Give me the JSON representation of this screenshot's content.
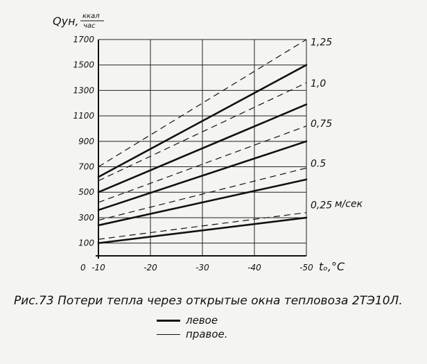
{
  "chart_data": {
    "type": "line",
    "y_label": "Qун,",
    "y_unit_num": "ккал",
    "y_unit_den": "час",
    "x_label": "tₒ,°C",
    "x_zero_label": "0",
    "x_ticks": [
      -10,
      -20,
      -30,
      -40,
      -50
    ],
    "y_ticks": [
      100,
      300,
      500,
      700,
      900,
      1100,
      1300,
      1500,
      1700
    ],
    "xlim": [
      -10,
      -50
    ],
    "ylim": [
      0,
      1700
    ],
    "grid": true,
    "velocity_unit": "м/сек",
    "series": [
      {
        "label": "0,25",
        "unit_shown": true,
        "solid": [
          [
            -10,
            100
          ],
          [
            -50,
            300
          ]
        ],
        "dashed": [
          [
            -10,
            130
          ],
          [
            -50,
            340
          ]
        ]
      },
      {
        "label": "0.5",
        "solid": [
          [
            -10,
            240
          ],
          [
            -50,
            600
          ]
        ],
        "dashed": [
          [
            -10,
            280
          ],
          [
            -50,
            690
          ]
        ]
      },
      {
        "label": "0,75",
        "solid": [
          [
            -10,
            360
          ],
          [
            -50,
            900
          ]
        ],
        "dashed": [
          [
            -10,
            420
          ],
          [
            -50,
            1020
          ]
        ]
      },
      {
        "label": "1,0",
        "solid": [
          [
            -10,
            500
          ],
          [
            -50,
            1190
          ]
        ],
        "dashed": [
          [
            -10,
            590
          ],
          [
            -50,
            1360
          ]
        ]
      },
      {
        "label": "1,25",
        "solid": [
          [
            -10,
            620
          ],
          [
            -50,
            1500
          ]
        ],
        "dashed": [
          [
            -10,
            700
          ],
          [
            -50,
            1700
          ]
        ]
      }
    ]
  },
  "caption": "Рис.73 Потери тепла через открытые окна тепловоза 2ТЭ10Л.",
  "legend": [
    {
      "style": "bold",
      "label": "левое"
    },
    {
      "style": "thin",
      "label": "правое."
    }
  ]
}
